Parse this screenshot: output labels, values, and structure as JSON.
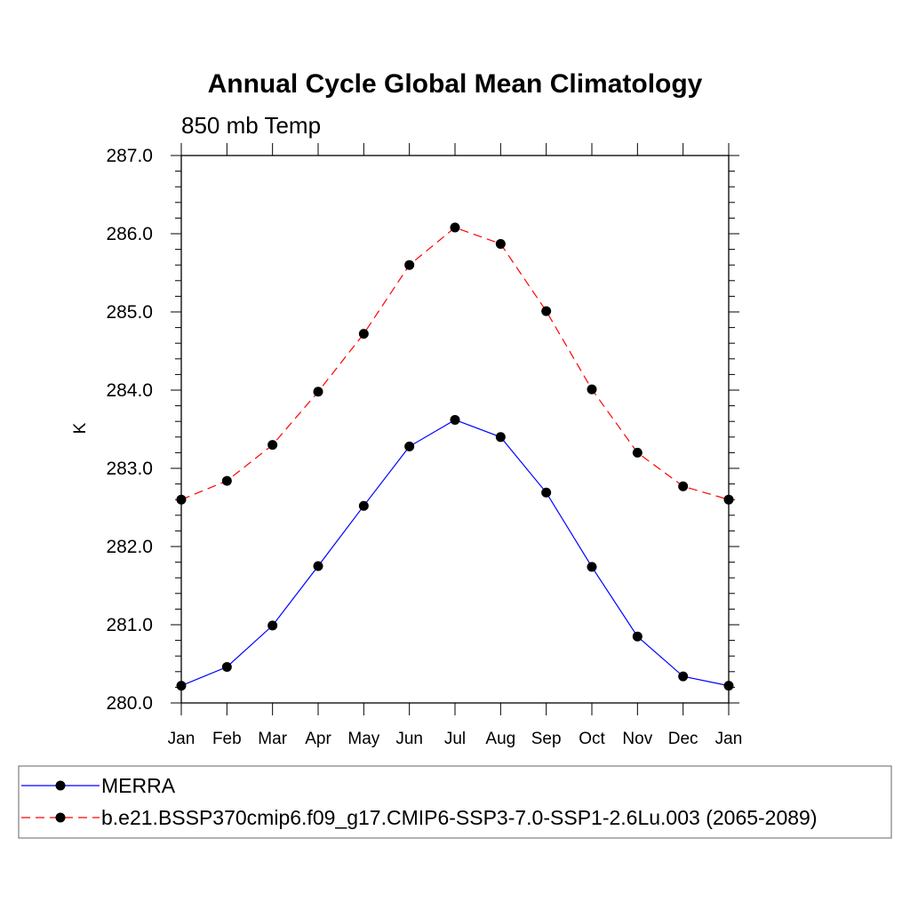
{
  "chart_data": {
    "type": "line",
    "title": "Annual Cycle Global Mean Climatology",
    "subtitle": "850 mb Temp",
    "ylabel": "K",
    "xlabel": "",
    "ylim": [
      280.0,
      287.0
    ],
    "ytick_labels": [
      "280.0",
      "281.0",
      "282.0",
      "283.0",
      "284.0",
      "285.0",
      "286.0",
      "287.0"
    ],
    "categories": [
      "Jan",
      "Feb",
      "Mar",
      "Apr",
      "May",
      "Jun",
      "Jul",
      "Aug",
      "Sep",
      "Oct",
      "Nov",
      "Dec",
      "Jan"
    ],
    "grid": false,
    "legend_position": "bottom",
    "series": [
      {
        "name": "MERRA",
        "color": "#0000ff",
        "style": "solid",
        "values": [
          280.22,
          280.46,
          280.99,
          281.75,
          282.52,
          283.28,
          283.62,
          283.4,
          282.69,
          281.74,
          280.85,
          280.34,
          280.22
        ]
      },
      {
        "name": "b.e21.BSSP370cmip6.f09_g17.CMIP6-SSP3-7.0-SSP1-2.6Lu.003 (2065-2089)",
        "color": "#ff0000",
        "style": "dashed",
        "values": [
          282.6,
          282.84,
          283.3,
          283.98,
          284.72,
          285.6,
          286.08,
          285.87,
          285.01,
          284.01,
          283.2,
          282.77,
          282.6
        ]
      }
    ]
  }
}
